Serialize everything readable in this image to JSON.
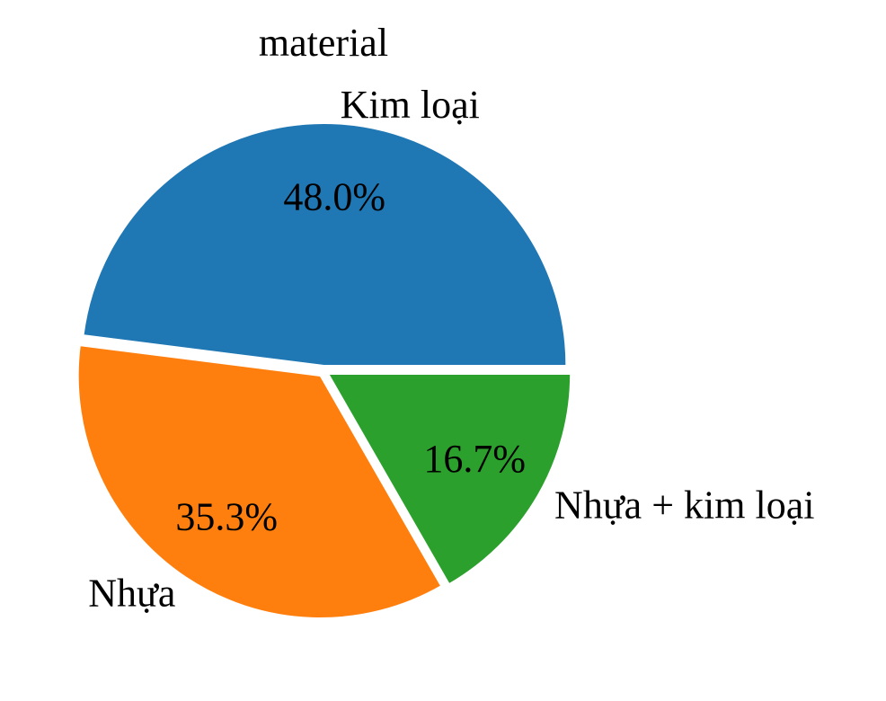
{
  "chart_data": {
    "type": "pie",
    "title": "material",
    "categories": [
      "Kim loại",
      "Nhựa",
      "Nhựa + kim loại"
    ],
    "values": [
      48.0,
      35.3,
      16.7
    ],
    "labels": [
      "48.0%",
      "35.3%",
      "16.7%"
    ],
    "colors": [
      "#1f77b4",
      "#ff7f0e",
      "#2ca02c"
    ],
    "start_angle_deg": 0,
    "direction": "counterclockwise",
    "exploded": true,
    "legend": false
  }
}
